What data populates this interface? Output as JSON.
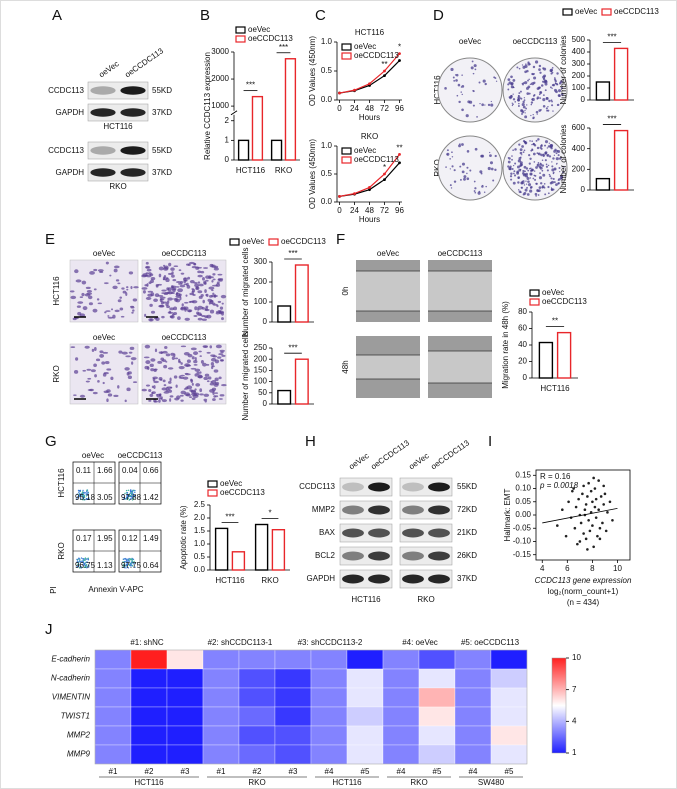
{
  "panel_labels": [
    "A",
    "B",
    "C",
    "D",
    "E",
    "F",
    "G",
    "H",
    "I",
    "J"
  ],
  "A": {
    "lanes": [
      "oeVec",
      "oeCCDC113"
    ],
    "blots": [
      {
        "cell": "HCT116",
        "rows": [
          {
            "protein": "CCDC113",
            "size": "55KD"
          },
          {
            "protein": "GAPDH",
            "size": "37KD"
          }
        ]
      },
      {
        "cell": "RKO",
        "rows": [
          {
            "protein": "CCDC113",
            "size": "55KD"
          },
          {
            "protein": "GAPDH",
            "size": "37KD"
          }
        ]
      }
    ]
  },
  "B": {
    "type": "bar",
    "ylabel": "Relative CCDC113 expression",
    "categories": [
      "HCT116",
      "RKO"
    ],
    "series": [
      {
        "name": "oeVec",
        "color": "#000000",
        "values": [
          1,
          1
        ]
      },
      {
        "name": "oeCCDC113",
        "color": "#e8262a",
        "values": [
          1350,
          2750
        ]
      }
    ],
    "ylim": [
      0,
      3000
    ],
    "axis_break": [
      2.2,
      900
    ],
    "yticks": [
      0,
      1,
      2,
      1000,
      2000,
      3000
    ],
    "significance": [
      "***",
      "***"
    ]
  },
  "C": [
    {
      "type": "line",
      "title": "HCT116",
      "x": [
        0,
        24,
        48,
        72,
        96
      ],
      "xlim": [
        -4,
        100
      ],
      "xticks": [
        0,
        24,
        48,
        72,
        96
      ],
      "xlabel": "Hours",
      "ylabel": "OD Values (450nm)",
      "ylim": [
        0,
        1
      ],
      "yticks": [
        {
          "value": 0,
          "label": "0.0"
        },
        {
          "value": 0.5,
          "label": "0.5"
        },
        {
          "value": 1,
          "label": "1.0"
        }
      ],
      "series": [
        {
          "name": "oeVec",
          "color": "#000000",
          "values": [
            0.12,
            0.16,
            0.25,
            0.42,
            0.68
          ]
        },
        {
          "name": "oeCCDC113",
          "color": "#e8262a",
          "values": [
            0.12,
            0.17,
            0.28,
            0.5,
            0.8
          ]
        }
      ],
      "annotations": [
        {
          "x": 72,
          "text": "**"
        },
        {
          "x": 96,
          "text": "*"
        }
      ]
    },
    {
      "type": "line",
      "title": "RKO",
      "x": [
        0,
        24,
        48,
        72,
        96
      ],
      "xlim": [
        -4,
        100
      ],
      "xticks": [
        0,
        24,
        48,
        72,
        96
      ],
      "xlabel": "Hours",
      "ylabel": "OD Values (450nm)",
      "ylim": [
        0,
        1
      ],
      "yticks": [
        {
          "value": 0,
          "label": "0.0"
        },
        {
          "value": 0.5,
          "label": "0.5"
        },
        {
          "value": 1,
          "label": "1.0"
        }
      ],
      "series": [
        {
          "name": "oeVec",
          "color": "#000000",
          "values": [
            0.1,
            0.14,
            0.22,
            0.4,
            0.7
          ]
        },
        {
          "name": "oeCCDC113",
          "color": "#e8262a",
          "values": [
            0.1,
            0.15,
            0.26,
            0.5,
            0.85
          ]
        }
      ],
      "annotations": [
        {
          "x": 72,
          "text": "*"
        },
        {
          "x": 96,
          "text": "**"
        }
      ]
    }
  ],
  "D": {
    "columns": [
      "oeVec",
      "oeCCDC113"
    ],
    "rows": [
      "HCT116",
      "RKO"
    ],
    "charts": [
      {
        "type": "bar",
        "ylabel": "Number of colonies",
        "series": [
          {
            "name": "oeVec",
            "color": "#000000",
            "values": [
              150
            ]
          },
          {
            "name": "oeCCDC113",
            "color": "#e8262a",
            "values": [
              430
            ]
          }
        ],
        "ylim": [
          0,
          500
        ],
        "yticks": [
          0,
          100,
          200,
          300,
          400,
          500
        ],
        "significance": [
          "***"
        ]
      },
      {
        "type": "bar",
        "ylabel": "Number of colonies",
        "series": [
          {
            "color": "#000000",
            "values": [
              110
            ]
          },
          {
            "color": "#e8262a",
            "values": [
              575
            ]
          }
        ],
        "ylim": [
          0,
          600
        ],
        "yticks": [
          0,
          200,
          400,
          600
        ],
        "significance": [
          "***"
        ]
      }
    ]
  },
  "E": {
    "columns": [
      "oeVec",
      "oeCCDC113"
    ],
    "rows": [
      "HCT116",
      "RKO"
    ],
    "charts": [
      {
        "type": "bar",
        "ylabel": "Number of migrated cells",
        "series": [
          {
            "name": "oeVec",
            "color": "#000000",
            "values": [
              80
            ]
          },
          {
            "name": "oeCCDC113",
            "color": "#e8262a",
            "values": [
              285
            ]
          }
        ],
        "ylim": [
          0,
          300
        ],
        "yticks": [
          0,
          100,
          200,
          300
        ],
        "significance": [
          "***"
        ]
      },
      {
        "type": "bar",
        "ylabel": "Number of migrated cells",
        "series": [
          {
            "color": "#000000",
            "values": [
              60
            ]
          },
          {
            "color": "#e8262a",
            "values": [
              200
            ]
          }
        ],
        "ylim": [
          0,
          250
        ],
        "yticks": [
          0,
          50,
          100,
          150,
          200,
          250
        ],
        "significance": [
          "***"
        ]
      }
    ]
  },
  "F": {
    "columns": [
      "oeVec",
      "oeCCDC113"
    ],
    "rows": [
      "0h",
      "48h"
    ],
    "chart": {
      "type": "bar",
      "ylabel": "Migration rate in 48h (%)",
      "categories": [
        "HCT116"
      ],
      "series": [
        {
          "name": "oeVec",
          "color": "#000000",
          "values": [
            43
          ]
        },
        {
          "name": "oeCCDC113",
          "color": "#e8262a",
          "values": [
            55
          ]
        }
      ],
      "ylim": [
        0,
        80
      ],
      "yticks": [
        0,
        20,
        40,
        60,
        80
      ],
      "significance": [
        "**"
      ]
    }
  },
  "G": {
    "columns": [
      "oeVec",
      "oeCCDC113"
    ],
    "rows": [
      "HCT116",
      "RKO"
    ],
    "quadrants": [
      [
        [
          "0.11",
          "1.66",
          "95.18",
          "3.05"
        ],
        [
          "0.04",
          "0.66",
          "97.88",
          "1.42"
        ]
      ],
      [
        [
          "0.17",
          "1.95",
          "96.75",
          "1.13"
        ],
        [
          "0.12",
          "1.49",
          "97.75",
          "0.64"
        ]
      ]
    ],
    "x_axis": "Annexin V-APC",
    "y_axis": "PI",
    "chart": {
      "type": "bar",
      "ylabel": "Apoptotic rate (%)",
      "categories": [
        "HCT116",
        "RKO"
      ],
      "series": [
        {
          "name": "oeVec",
          "color": "#000000",
          "values": [
            1.6,
            1.75
          ]
        },
        {
          "name": "oeCCDC113",
          "color": "#e8262a",
          "values": [
            0.7,
            1.55
          ]
        }
      ],
      "ylim": [
        0,
        2.5
      ],
      "yticks": [
        {
          "value": 0,
          "label": "0.0"
        },
        {
          "value": 0.5,
          "label": "0.5"
        },
        {
          "value": 1,
          "label": "1.0"
        },
        {
          "value": 1.5,
          "label": "1.5"
        },
        {
          "value": 2,
          "label": "2.0"
        },
        {
          "value": 2.5,
          "label": "2.5"
        }
      ],
      "significance": [
        "***",
        "*"
      ]
    }
  },
  "H": {
    "lanes": [
      "oeVec",
      "oeCCDC113"
    ],
    "cells": [
      "HCT116",
      "RKO"
    ],
    "rows": [
      {
        "protein": "CCDC113",
        "size": "55KD"
      },
      {
        "protein": "MMP2",
        "size": "72KD"
      },
      {
        "protein": "BAX",
        "size": "21KD"
      },
      {
        "protein": "BCL2",
        "size": "26KD"
      },
      {
        "protein": "GAPDH",
        "size": "37KD"
      }
    ]
  },
  "I": {
    "type": "scatter",
    "ylabel": "Hallmark: EMT",
    "xlabel": "CCDC113 gene expression",
    "xlabel_2": "log₂(norm_count+1)",
    "n_label": "(n = 434)",
    "stats": [
      "R = 0.16",
      "p = 0.0018"
    ],
    "xlim": [
      3.5,
      11
    ],
    "ylim": [
      -0.17,
      0.17
    ],
    "xticks": [
      4,
      6,
      8,
      10
    ],
    "yticks": [
      -0.15,
      {
        "value": -0.1,
        "label": "-0.10"
      },
      -0.05,
      {
        "value": 0,
        "label": "0.00"
      },
      0.05,
      {
        "value": 0.1,
        "label": "0.10"
      },
      0.15
    ],
    "x": [
      5.2,
      5.6,
      5.9,
      6.1,
      6.3,
      6.4,
      6.6,
      6.7,
      6.8,
      6.9,
      7.0,
      7.1,
      7.2,
      7.3,
      7.3,
      7.4,
      7.5,
      7.5,
      7.6,
      7.7,
      7.7,
      7.8,
      7.9,
      7.9,
      8.0,
      8.0,
      8.1,
      8.2,
      8.2,
      8.3,
      8.3,
      8.4,
      8.5,
      8.5,
      8.6,
      8.7,
      8.8,
      8.9,
      9.0,
      9.1,
      9.2,
      9.4,
      9.6,
      6.5,
      7.0,
      7.6,
      8.1,
      8.6,
      7.4,
      8.9
    ],
    "y": [
      -0.04,
      0.02,
      -0.08,
      0.05,
      -0.01,
      0.09,
      -0.05,
      0.03,
      -0.11,
      0.06,
      0,
      -0.03,
      0.08,
      -0.07,
      0.11,
      0.02,
      -0.09,
      0.04,
      0.07,
      -0.02,
      0.12,
      -0.06,
      0.01,
      0.09,
      -0.04,
      0.05,
      -0.12,
      0.03,
      0.1,
      -0.01,
      0.06,
      -0.08,
      0.02,
      0.13,
      -0.05,
      0.07,
      -0.03,
      0.04,
      0.08,
      -0.06,
      0.01,
      0.05,
      -0.02,
      0.1,
      -0.1,
      -0.13,
      0.14,
      -0.09,
      0,
      0.11
    ],
    "fit": {
      "x": [
        4,
        10
      ],
      "y": [
        -0.03,
        0.025
      ]
    }
  },
  "J": {
    "type": "heatmap",
    "top_labels": [
      "#1: shNC",
      "#2: shCCDC113-1",
      "#3: shCCDC113-2",
      "#4: oeVec",
      "#5: oeCCDC113"
    ],
    "rows": [
      "E-cadherin",
      "N-cadherin",
      "VIMENTIN",
      "TWIST1",
      "MMP2",
      "MMP9"
    ],
    "column_groups": [
      {
        "cell_line": "HCT116",
        "columns": [
          "#1",
          "#2",
          "#3"
        ]
      },
      {
        "cell_line": "RKO",
        "columns": [
          "#1",
          "#2",
          "#3"
        ]
      },
      {
        "cell_line": "HCT116",
        "columns": [
          "#4",
          "#5"
        ]
      },
      {
        "cell_line": "RKO",
        "columns": [
          "#4",
          "#5"
        ]
      },
      {
        "cell_line": "SW480",
        "columns": [
          "#4",
          "#5"
        ]
      }
    ],
    "values": [
      [
        3,
        10,
        6,
        3,
        3,
        3,
        3,
        1,
        3,
        2,
        3,
        1
      ],
      [
        3,
        1,
        1,
        3,
        2,
        1.5,
        3,
        5,
        3,
        5,
        3,
        4.5
      ],
      [
        3,
        1,
        1,
        3,
        2,
        1.5,
        3,
        5,
        3,
        7,
        3,
        5
      ],
      [
        3,
        1,
        1,
        3,
        2.5,
        1.5,
        3,
        4.5,
        3,
        6,
        3,
        5
      ],
      [
        3,
        1,
        1,
        3,
        2,
        2,
        3,
        5,
        3,
        5,
        3,
        6
      ],
      [
        3,
        1,
        1,
        3,
        2.5,
        2,
        3,
        5,
        3,
        4.5,
        3,
        5
      ]
    ],
    "colors": [
      "#1f1fff",
      "#ffffff",
      "#ff1f1f"
    ],
    "clim": [
      1,
      10
    ],
    "cticks": [
      1,
      4,
      7,
      10
    ]
  }
}
